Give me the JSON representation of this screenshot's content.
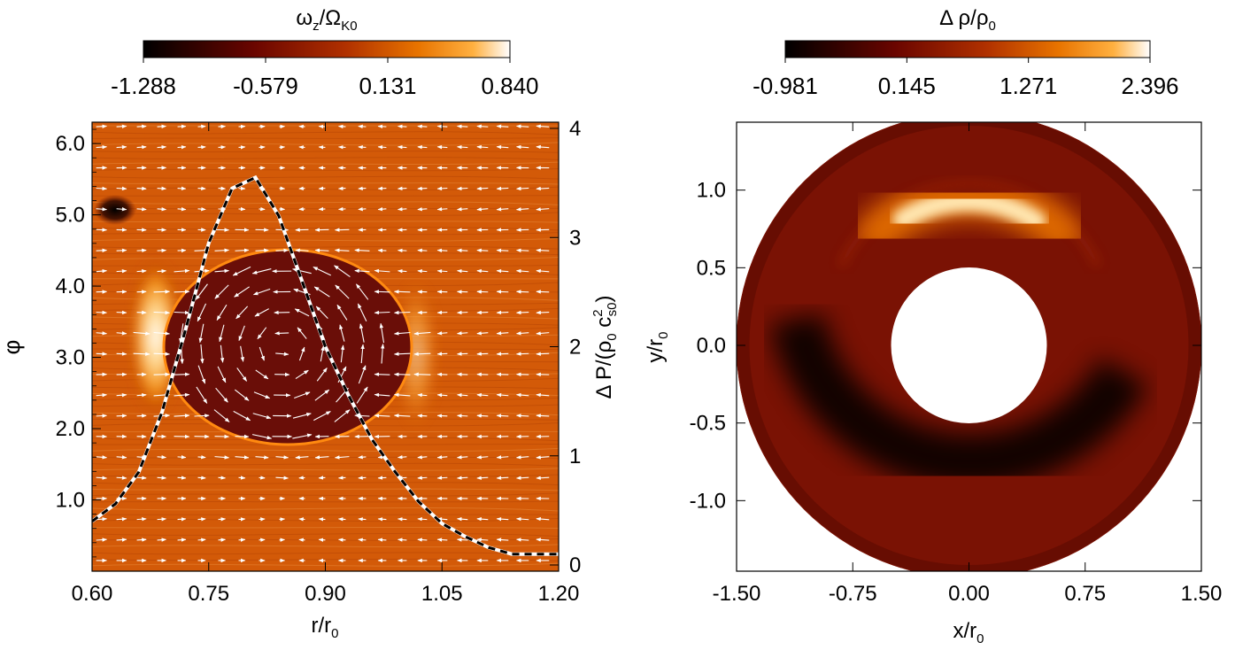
{
  "chart_data": [
    {
      "type": "heatmap",
      "panel": "left",
      "colorbar": {
        "label": "ω",
        "label_sub": "z",
        "label_slash": "/Ω",
        "label_sub2": "K0",
        "min": -1.288,
        "max": 0.84,
        "ticks": [
          "-1.288",
          "-0.579",
          "0.131",
          "0.840"
        ]
      },
      "xlabel": "r/r",
      "xlabel_sub": "0",
      "ylabel": "φ",
      "y2label": "Δ P/(ρ",
      "y2label_sub": "0",
      "y2label_mid": " c",
      "y2label_sup": "2",
      "y2label_sub2": "s0",
      "y2label_end": ")",
      "xlim": [
        0.6,
        1.2
      ],
      "ylim": [
        0,
        6.3
      ],
      "y2lim": [
        0,
        4
      ],
      "xticks": [
        "0.60",
        "0.75",
        "0.90",
        "1.05",
        "1.20"
      ],
      "yticks": [
        "1.0",
        "2.0",
        "3.0",
        "4.0",
        "5.0",
        "6.0"
      ],
      "y2ticks": [
        "0",
        "1",
        "2",
        "3",
        "4"
      ],
      "vortex": {
        "r_center": 0.845,
        "phi_center": 3.14,
        "r_halfwidth": 0.115,
        "phi_halfwidth": 1.15
      },
      "pressure_profile": {
        "r": [
          0.6,
          0.63,
          0.66,
          0.69,
          0.72,
          0.75,
          0.78,
          0.81,
          0.84,
          0.87,
          0.9,
          0.93,
          0.96,
          0.99,
          1.02,
          1.05,
          1.08,
          1.11,
          1.14,
          1.17,
          1.2
        ],
        "dp": [
          0.4,
          0.56,
          0.85,
          1.4,
          2.15,
          2.95,
          3.45,
          3.55,
          3.2,
          2.6,
          2.0,
          1.55,
          1.15,
          0.85,
          0.58,
          0.38,
          0.26,
          0.16,
          0.1,
          0.1,
          0.1
        ]
      }
    },
    {
      "type": "heatmap",
      "panel": "right",
      "colorbar": {
        "label": "Δ ρ/ρ",
        "label_sub": "0",
        "min": -0.981,
        "max": 2.396,
        "ticks": [
          "-0.981",
          "0.145",
          "1.271",
          "2.396"
        ]
      },
      "xlabel": "x/r",
      "xlabel_sub": "0",
      "ylabel": "y/r",
      "ylabel_sub": "0",
      "xlim": [
        -1.5,
        1.5
      ],
      "ylim": [
        -1.5,
        1.5
      ],
      "xticks": [
        "-1.50",
        "-0.75",
        "0.00",
        "0.75",
        "1.50"
      ],
      "yticks": [
        "-1.0",
        "-0.5",
        "0.0",
        "0.5",
        "1.0"
      ],
      "annulus": {
        "r_inner": 0.5,
        "r_outer": 1.5
      }
    }
  ],
  "colors": {
    "hot0": "#000000",
    "hot1": "#4d0000",
    "hot2": "#8c1a00",
    "hot3": "#cc4400",
    "hot4": "#ff9500",
    "hot5": "#ffffff",
    "field": "#d35400",
    "vortex": "#6a0e08",
    "dash": "#000000"
  }
}
